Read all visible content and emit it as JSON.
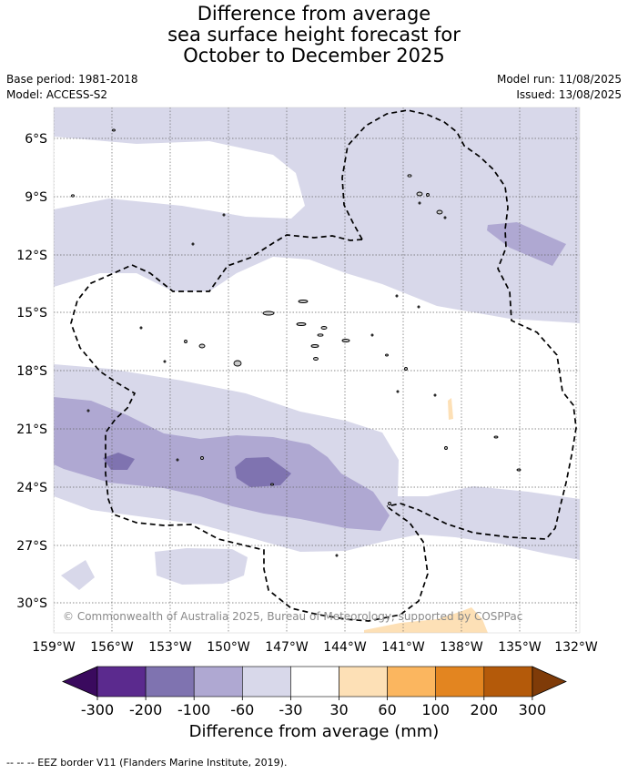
{
  "header": {
    "title_lines": [
      "Difference from average",
      "sea surface height forecast for",
      "October to December 2025"
    ],
    "base_period": "Base period: 1981-2018",
    "model": "Model: ACCESS-S2",
    "model_run": "Model run: 11/08/2025",
    "issued": "Issued: 13/08/2025"
  },
  "map": {
    "lat_labels": [
      "6°S",
      "9°S",
      "12°S",
      "15°S",
      "18°S",
      "21°S",
      "24°S",
      "27°S",
      "30°S"
    ],
    "lon_labels": [
      "159°W",
      "156°W",
      "153°W",
      "150°W",
      "147°W",
      "144°W",
      "141°W",
      "138°W",
      "135°W",
      "132°W"
    ],
    "copyright": "© Commonwealth of Australia 2025, Bureau of Meteorology, supported by COSPPac",
    "colors": {
      "land": "#c9c9c9",
      "lavender_light": "#d8d8ea",
      "lavender_mid": "#afa8d2",
      "purple_dark": "#7f73b0",
      "orange_light": "#fde0b6"
    }
  },
  "colorbar": {
    "title": "Difference from average (mm)",
    "labels": [
      "-300",
      "-200",
      "-100",
      "-60",
      "-30",
      "30",
      "60",
      "100",
      "200",
      "300"
    ],
    "colors": [
      "#3a0a5e",
      "#5b2a8e",
      "#7f73b0",
      "#afa8d2",
      "#d8d8ea",
      "#ffffff",
      "#fde0b6",
      "#fbb65f",
      "#e38520",
      "#b45a0a",
      "#7f3b08"
    ]
  },
  "footnote": "-- -- -- EEZ border V11 (Flanders Marine Institute, 2019)."
}
